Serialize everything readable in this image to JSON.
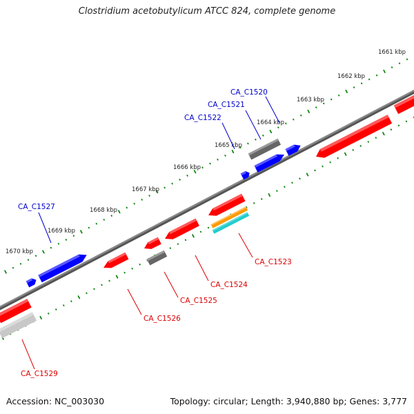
{
  "title": "Clostridium acetobutylicum ATCC 824, complete genome",
  "footer": {
    "accession": "Accession: NC_003030",
    "summary": "Topology: circular; Length: 3,940,880 bp; Genes: 3,777"
  },
  "colors": {
    "forward_gene": "#0000ff",
    "reverse_gene": "#ff0000",
    "grey_gene": "#666666",
    "light_grey_gene": "#c8c8c8",
    "orange_gene": "#ff9900",
    "cyan_gene": "#22cccc",
    "backbone": "#888888",
    "ticks": "#118811",
    "label_forward": "#0000cc",
    "label_reverse": "#dd0000"
  },
  "scale": {
    "ticks": [
      {
        "text": "1661 kbp"
      },
      {
        "text": "1662 kbp"
      },
      {
        "text": "1663 kbp"
      },
      {
        "text": "1664 kbp"
      },
      {
        "text": "1665 kbp"
      },
      {
        "text": "1666 kbp"
      },
      {
        "text": "1667 kbp"
      },
      {
        "text": "1668 kbp"
      },
      {
        "text": "1669 kbp"
      },
      {
        "text": "1670 kbp"
      }
    ]
  },
  "gene_labels": {
    "forward": [
      "CA_C1520",
      "CA_C1521",
      "CA_C1522",
      "CA_C1527"
    ],
    "reverse": [
      "CA_C1523",
      "CA_C1524",
      "CA_C1525",
      "CA_C1526",
      "CA_C1529"
    ]
  }
}
